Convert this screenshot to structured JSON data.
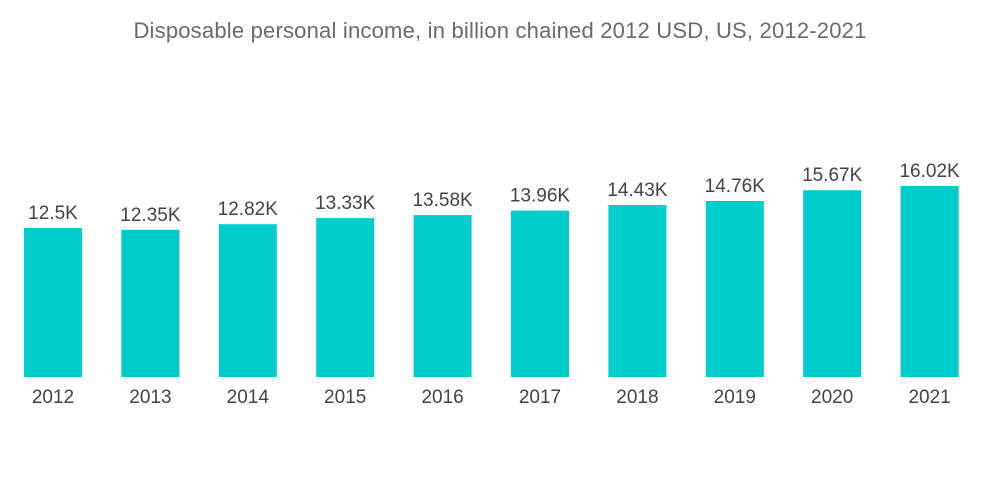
{
  "chart_data": {
    "type": "bar",
    "title": "Disposable personal income, in billion chained 2012 USD, US, 2012-2021",
    "xlabel": "",
    "ylabel": "",
    "categories": [
      "2012",
      "2013",
      "2014",
      "2015",
      "2016",
      "2017",
      "2018",
      "2019",
      "2020",
      "2021"
    ],
    "values": [
      12500,
      12350,
      12820,
      13330,
      13580,
      13960,
      14430,
      14760,
      15670,
      16020
    ],
    "data_labels": [
      "12.5K",
      "12.35K",
      "12.82K",
      "13.33K",
      "13.58K",
      "13.96K",
      "14.43K",
      "14.76K",
      "15.67K",
      "16.02K"
    ],
    "ylim": [
      0,
      16020
    ],
    "grid": false,
    "legend": "none",
    "bar_color": "#00cccc",
    "text_color": "#444444",
    "title_color": "#6b6b6b"
  }
}
